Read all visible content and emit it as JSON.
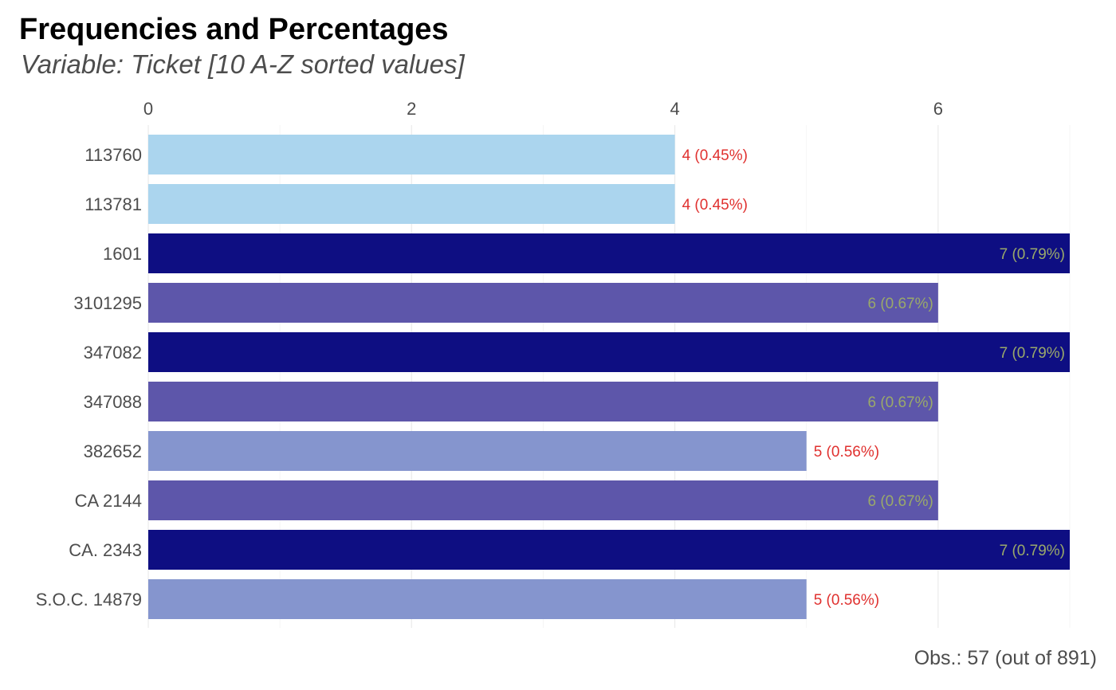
{
  "chart_data": {
    "type": "bar",
    "orientation": "horizontal",
    "title": "Frequencies and Percentages",
    "subtitle": "Variable: Ticket [10 A-Z sorted values]",
    "caption": "Obs.: 57 (out of 891)",
    "xlabel": "",
    "ylabel": "",
    "categories": [
      "113760",
      "113781",
      "1601",
      "3101295",
      "347082",
      "347088",
      "382652",
      "CA 2144",
      "CA. 2343",
      "S.O.C. 14879"
    ],
    "values": [
      4,
      4,
      7,
      6,
      7,
      6,
      5,
      6,
      7,
      5
    ],
    "labels": [
      "4 (0.45%)",
      "4 (0.45%)",
      "7 (0.79%)",
      "6 (0.67%)",
      "7 (0.79%)",
      "6 (0.67%)",
      "5 (0.56%)",
      "6 (0.67%)",
      "7 (0.79%)",
      "5 (0.56%)"
    ],
    "xlim": [
      0,
      7
    ],
    "xticks": [
      0,
      2,
      4,
      6
    ],
    "x_axis_position": "top",
    "grid": true,
    "legend": "none",
    "bar_colors": {
      "4": "#abd5ee",
      "5": "#8595ce",
      "6": "#5d56aa",
      "7": "#0e0e82"
    },
    "label_colors": {
      "outside": "#e0312f",
      "inside": "#9aa96a"
    }
  }
}
